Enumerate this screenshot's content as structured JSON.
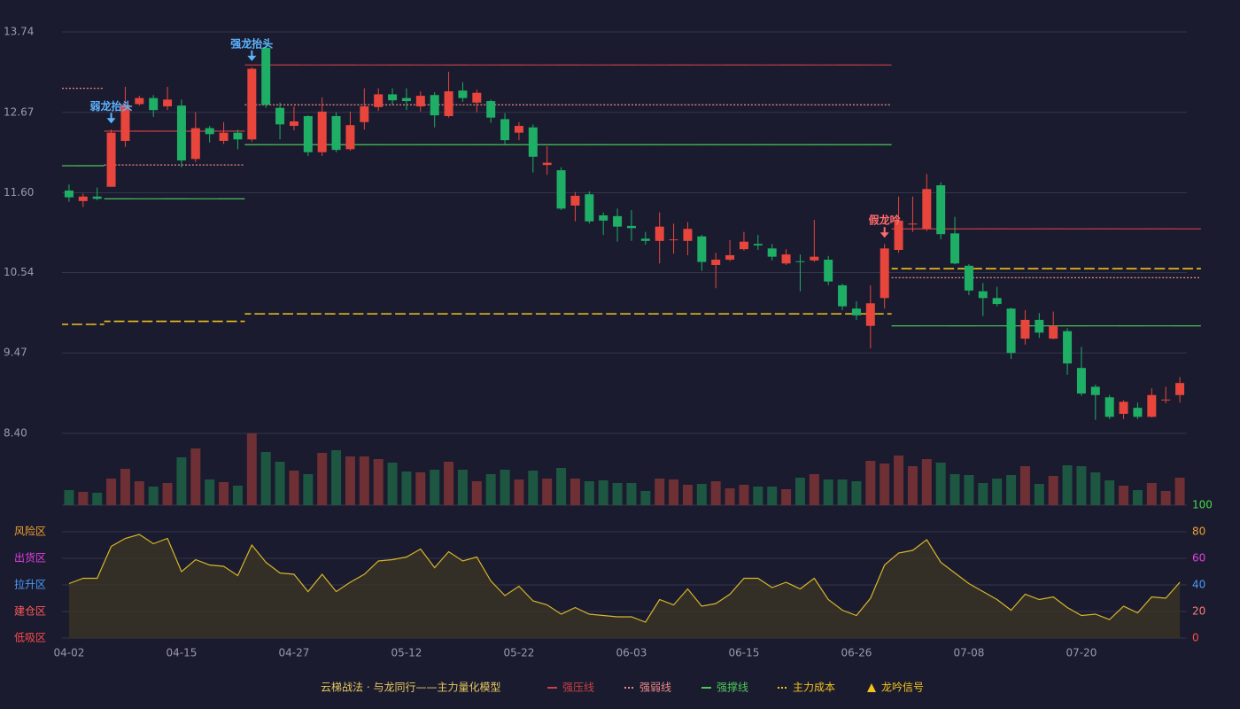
{
  "chart_data": {
    "type": "candlestick",
    "categories": [
      "04-02",
      null,
      null,
      null,
      null,
      null,
      null,
      null,
      "04-15",
      null,
      null,
      null,
      null,
      null,
      null,
      null,
      "04-27",
      null,
      null,
      null,
      null,
      null,
      null,
      null,
      "05-12",
      null,
      null,
      null,
      null,
      null,
      null,
      null,
      "05-22",
      null,
      null,
      null,
      null,
      null,
      null,
      null,
      "06-03",
      null,
      null,
      null,
      null,
      null,
      null,
      null,
      "06-15",
      null,
      null,
      null,
      null,
      null,
      null,
      null,
      "06-26",
      null,
      null,
      null,
      null,
      null,
      null,
      null,
      "07-08",
      null,
      null,
      null,
      null,
      null,
      null,
      null,
      "07-20",
      null,
      null,
      null,
      null,
      null,
      null,
      null
    ],
    "open": [
      11.63,
      11.49,
      11.55,
      11.68,
      12.29,
      12.78,
      12.86,
      12.75,
      12.76,
      12.05,
      12.46,
      12.29,
      12.4,
      12.31,
      13.53,
      12.73,
      12.49,
      12.62,
      12.14,
      12.62,
      12.18,
      12.54,
      12.74,
      12.91,
      12.86,
      12.75,
      12.9,
      12.62,
      12.96,
      12.8,
      12.82,
      12.58,
      12.4,
      12.47,
      11.97,
      11.9,
      11.43,
      11.58,
      11.3,
      11.29,
      11.16,
      10.99,
      10.96,
      10.97,
      10.96,
      11.02,
      10.64,
      10.71,
      10.85,
      10.92,
      10.86,
      10.66,
      10.69,
      10.7,
      10.71,
      10.37,
      10.06,
      9.83,
      10.2,
      10.84,
      11.18,
      11.12,
      11.7,
      11.06,
      10.63,
      10.29,
      10.2,
      10.06,
      9.66,
      9.91,
      9.66,
      9.76,
      9.27,
      9.02,
      8.88,
      8.66,
      8.74,
      8.62,
      8.84,
      8.91
    ],
    "close": [
      11.54,
      11.55,
      11.52,
      12.4,
      12.77,
      12.86,
      12.7,
      12.84,
      12.03,
      12.46,
      12.38,
      12.4,
      12.31,
      13.25,
      12.77,
      12.51,
      12.55,
      12.14,
      12.68,
      12.17,
      12.5,
      12.75,
      12.91,
      12.83,
      12.82,
      12.89,
      12.63,
      12.95,
      12.86,
      12.93,
      12.6,
      12.3,
      12.49,
      12.08,
      12.0,
      11.39,
      11.56,
      11.22,
      11.23,
      11.15,
      11.13,
      10.96,
      11.15,
      10.98,
      11.12,
      10.68,
      10.71,
      10.77,
      10.95,
      10.9,
      10.75,
      10.78,
      10.68,
      10.75,
      10.42,
      10.09,
      9.97,
      10.13,
      10.86,
      11.23,
      11.19,
      11.65,
      11.05,
      10.66,
      10.3,
      10.2,
      10.12,
      9.47,
      9.91,
      9.74,
      9.83,
      9.33,
      8.93,
      8.91,
      8.62,
      8.82,
      8.62,
      8.91,
      8.85,
      9.07
    ],
    "high": [
      11.71,
      11.59,
      11.67,
      12.44,
      13.01,
      12.89,
      12.9,
      13.01,
      12.84,
      12.67,
      12.49,
      12.54,
      12.44,
      13.27,
      13.6,
      12.8,
      12.75,
      12.63,
      12.87,
      12.67,
      12.68,
      12.99,
      12.99,
      12.99,
      12.99,
      12.95,
      12.94,
      13.21,
      13.07,
      12.97,
      12.84,
      12.66,
      12.54,
      12.51,
      12.22,
      11.94,
      11.61,
      11.62,
      11.34,
      11.39,
      11.37,
      11.08,
      11.34,
      11.19,
      11.21,
      11.04,
      10.8,
      10.97,
      11.08,
      11.04,
      10.92,
      10.85,
      10.78,
      11.24,
      10.76,
      10.39,
      10.16,
      10.37,
      10.92,
      11.55,
      11.55,
      11.85,
      11.74,
      11.28,
      10.65,
      10.4,
      10.35,
      10.07,
      10.04,
      10.0,
      10.02,
      9.8,
      9.55,
      9.05,
      8.91,
      8.84,
      8.81,
      9.0,
      9.02,
      9.15
    ],
    "low": [
      11.48,
      11.41,
      11.5,
      11.68,
      12.21,
      12.76,
      12.61,
      12.7,
      11.94,
      12.01,
      12.27,
      12.25,
      12.18,
      12.28,
      12.73,
      12.31,
      12.43,
      12.09,
      12.09,
      12.14,
      12.16,
      12.44,
      12.69,
      12.77,
      12.7,
      12.68,
      12.47,
      12.6,
      12.81,
      12.67,
      12.53,
      12.25,
      12.3,
      11.87,
      11.84,
      11.37,
      11.22,
      11.19,
      11.04,
      10.95,
      10.96,
      10.91,
      10.66,
      10.79,
      10.77,
      10.56,
      10.33,
      10.69,
      10.83,
      10.84,
      10.7,
      10.64,
      10.29,
      10.68,
      10.37,
      10.04,
      9.91,
      9.53,
      10.06,
      10.8,
      11.08,
      11.09,
      10.98,
      10.65,
      10.24,
      9.96,
      10.09,
      9.39,
      9.58,
      9.67,
      9.65,
      9.18,
      8.9,
      8.58,
      8.59,
      8.59,
      8.59,
      8.61,
      8.8,
      8.81
    ],
    "up_color": "#e8453c",
    "down_color": "#1fae66",
    "ylim": [
      8.4,
      13.74
    ],
    "yticks": [
      {
        "value": 8.4,
        "label": "8.40"
      },
      9.47,
      10.54,
      {
        "value": 11.6,
        "label": "11.60"
      },
      12.67,
      13.74
    ],
    "grid": true,
    "levels": [
      {
        "name": "强压线",
        "color": "#c94045",
        "style": "solid",
        "values": [
          null,
          null,
          null,
          12.42,
          12.42,
          12.42,
          12.42,
          12.42,
          12.42,
          12.42,
          12.42,
          12.42,
          12.42,
          13.3,
          13.3,
          13.3,
          13.3,
          13.3,
          13.3,
          13.3,
          13.3,
          13.3,
          13.3,
          13.3,
          13.3,
          13.3,
          13.3,
          13.3,
          13.3,
          13.3,
          13.3,
          13.3,
          13.3,
          13.3,
          13.3,
          13.3,
          13.3,
          13.3,
          13.3,
          13.3,
          13.3,
          13.3,
          13.3,
          13.3,
          13.3,
          13.3,
          13.3,
          13.3,
          13.3,
          13.3,
          13.3,
          13.3,
          13.3,
          13.3,
          13.3,
          13.3,
          13.3,
          13.3,
          13.3,
          11.12,
          11.12,
          11.12,
          11.12,
          11.12,
          11.12,
          11.12,
          11.12,
          11.12,
          11.12,
          11.12,
          11.12,
          11.12,
          11.12,
          11.12,
          11.12,
          11.12,
          11.12,
          11.12,
          11.12,
          11.12,
          11.12
        ]
      },
      {
        "name": "强弱线",
        "color": "#f08a8a",
        "style": "dotted",
        "values": [
          12.99,
          12.99,
          12.99,
          11.97,
          11.97,
          11.97,
          11.97,
          11.97,
          11.97,
          11.97,
          11.97,
          11.97,
          11.97,
          12.77,
          12.77,
          12.77,
          12.77,
          12.77,
          12.77,
          12.77,
          12.77,
          12.77,
          12.77,
          12.77,
          12.77,
          12.77,
          12.77,
          12.77,
          12.77,
          12.77,
          12.77,
          12.77,
          12.77,
          12.77,
          12.77,
          12.77,
          12.77,
          12.77,
          12.77,
          12.77,
          12.77,
          12.77,
          12.77,
          12.77,
          12.77,
          12.77,
          12.77,
          12.77,
          12.77,
          12.77,
          12.77,
          12.77,
          12.77,
          12.77,
          12.77,
          12.77,
          12.77,
          12.77,
          12.77,
          10.47,
          10.47,
          10.47,
          10.47,
          10.47,
          10.47,
          10.47,
          10.47,
          10.47,
          10.47,
          10.47,
          10.47,
          10.47,
          10.47,
          10.47,
          10.47,
          10.47,
          10.47,
          10.47,
          10.47,
          10.47,
          10.47
        ]
      },
      {
        "name": "强撑线",
        "color": "#4cc85a",
        "style": "solid",
        "values": [
          11.96,
          11.96,
          11.96,
          11.52,
          11.52,
          11.52,
          11.52,
          11.52,
          11.52,
          11.52,
          11.52,
          11.52,
          11.52,
          12.24,
          12.24,
          12.24,
          12.24,
          12.24,
          12.24,
          12.24,
          12.24,
          12.24,
          12.24,
          12.24,
          12.24,
          12.24,
          12.24,
          12.24,
          12.24,
          12.24,
          12.24,
          12.24,
          12.24,
          12.24,
          12.24,
          12.24,
          12.24,
          12.24,
          12.24,
          12.24,
          12.24,
          12.24,
          12.24,
          12.24,
          12.24,
          12.24,
          12.24,
          12.24,
          12.24,
          12.24,
          12.24,
          12.24,
          12.24,
          12.24,
          12.24,
          12.24,
          12.24,
          12.24,
          12.24,
          9.83,
          9.83,
          9.83,
          9.83,
          9.83,
          9.83,
          9.83,
          9.83,
          9.83,
          9.83,
          9.83,
          9.83,
          9.83,
          9.83,
          9.83,
          9.83,
          9.83,
          9.83,
          9.83,
          9.83,
          9.83,
          9.83
        ]
      },
      {
        "name": "主力成本",
        "color": "#f2c21a",
        "style": "dashed",
        "values": [
          9.85,
          9.85,
          9.85,
          9.89,
          9.89,
          9.89,
          9.89,
          9.89,
          9.89,
          9.89,
          9.89,
          9.89,
          9.89,
          9.99,
          9.99,
          9.99,
          9.99,
          9.99,
          9.99,
          9.99,
          9.99,
          9.99,
          9.99,
          9.99,
          9.99,
          9.99,
          9.99,
          9.99,
          9.99,
          9.99,
          9.99,
          9.99,
          9.99,
          9.99,
          9.99,
          9.99,
          9.99,
          9.99,
          9.99,
          9.99,
          9.99,
          9.99,
          9.99,
          9.99,
          9.99,
          9.99,
          9.99,
          9.99,
          9.99,
          9.99,
          9.99,
          9.99,
          9.99,
          9.99,
          9.99,
          9.99,
          9.99,
          9.99,
          9.99,
          10.59,
          10.59,
          10.59,
          10.59,
          10.59,
          10.59,
          10.59,
          10.59,
          10.59,
          10.59,
          10.59,
          10.59,
          10.59,
          10.59,
          10.59,
          10.59,
          10.59,
          10.59,
          10.59,
          10.59,
          10.59,
          10.59
        ]
      }
    ],
    "signals": [
      {
        "text": "弱龙抬头",
        "index": 3,
        "color": "#5db4ff"
      },
      {
        "text": "强龙抬头",
        "index": 13,
        "color": "#5db4ff"
      },
      {
        "text": "假龙吟",
        "index": 58,
        "color": "#ff6b6b"
      }
    ],
    "volume": {
      "values": [
        17,
        15,
        14,
        30,
        41,
        27,
        21,
        25,
        54,
        64,
        29,
        26,
        22,
        81,
        60,
        49,
        39,
        35,
        59,
        62,
        55,
        55,
        52,
        48,
        38,
        37,
        40,
        49,
        40,
        27,
        35,
        40,
        29,
        39,
        30,
        42,
        30,
        27,
        28,
        25,
        25,
        16,
        30,
        29,
        23,
        24,
        27,
        19,
        23,
        21,
        21,
        18,
        31,
        35,
        29,
        29,
        27,
        50,
        47,
        56,
        44,
        52,
        48,
        35,
        34,
        25,
        30,
        34,
        44,
        24,
        33,
        45,
        44,
        37,
        28,
        22,
        17,
        25,
        16,
        31
      ],
      "up_color": "#6e3034",
      "down_color": "#1d5641"
    },
    "indicator": {
      "values": [
        41,
        45,
        45,
        69,
        75,
        78,
        71,
        75,
        50,
        59,
        55,
        54,
        47,
        70,
        57,
        49,
        48,
        35,
        48,
        35,
        42,
        48,
        58,
        59,
        61,
        67,
        53,
        65,
        58,
        61,
        43,
        32,
        39,
        28,
        25,
        18,
        23,
        18,
        17,
        16,
        16,
        12,
        29,
        25,
        37,
        24,
        26,
        33,
        45,
        45,
        38,
        42,
        37,
        45,
        29,
        21,
        17,
        30,
        55,
        64,
        66,
        74,
        57,
        49,
        41,
        35,
        29,
        21,
        33,
        29,
        31,
        23,
        17,
        18,
        14,
        24,
        19,
        31,
        30,
        42
      ],
      "color": "#d8b52a",
      "ylim": [
        0,
        100
      ],
      "yticks": [
        0,
        20,
        40,
        60,
        80,
        100
      ],
      "ytick_colors": [
        "#ff4a4a",
        "#ff7a7a",
        "#4a9cff",
        "#e040e0",
        "#f0a030",
        "#44dd44"
      ],
      "zones": [
        "低吸区",
        "建仓区",
        "拉升区",
        "出货区",
        "风险区"
      ],
      "zone_colors": [
        "#ff4a4a",
        "#ff5a5a",
        "#4a9cff",
        "#e040e0",
        "#f0a030"
      ]
    },
    "legend_title": "云梯战法 · 与龙同行——主力量化模型",
    "signal_legend": "龙吟信号",
    "signal_legend_color": "#f2c21a"
  }
}
